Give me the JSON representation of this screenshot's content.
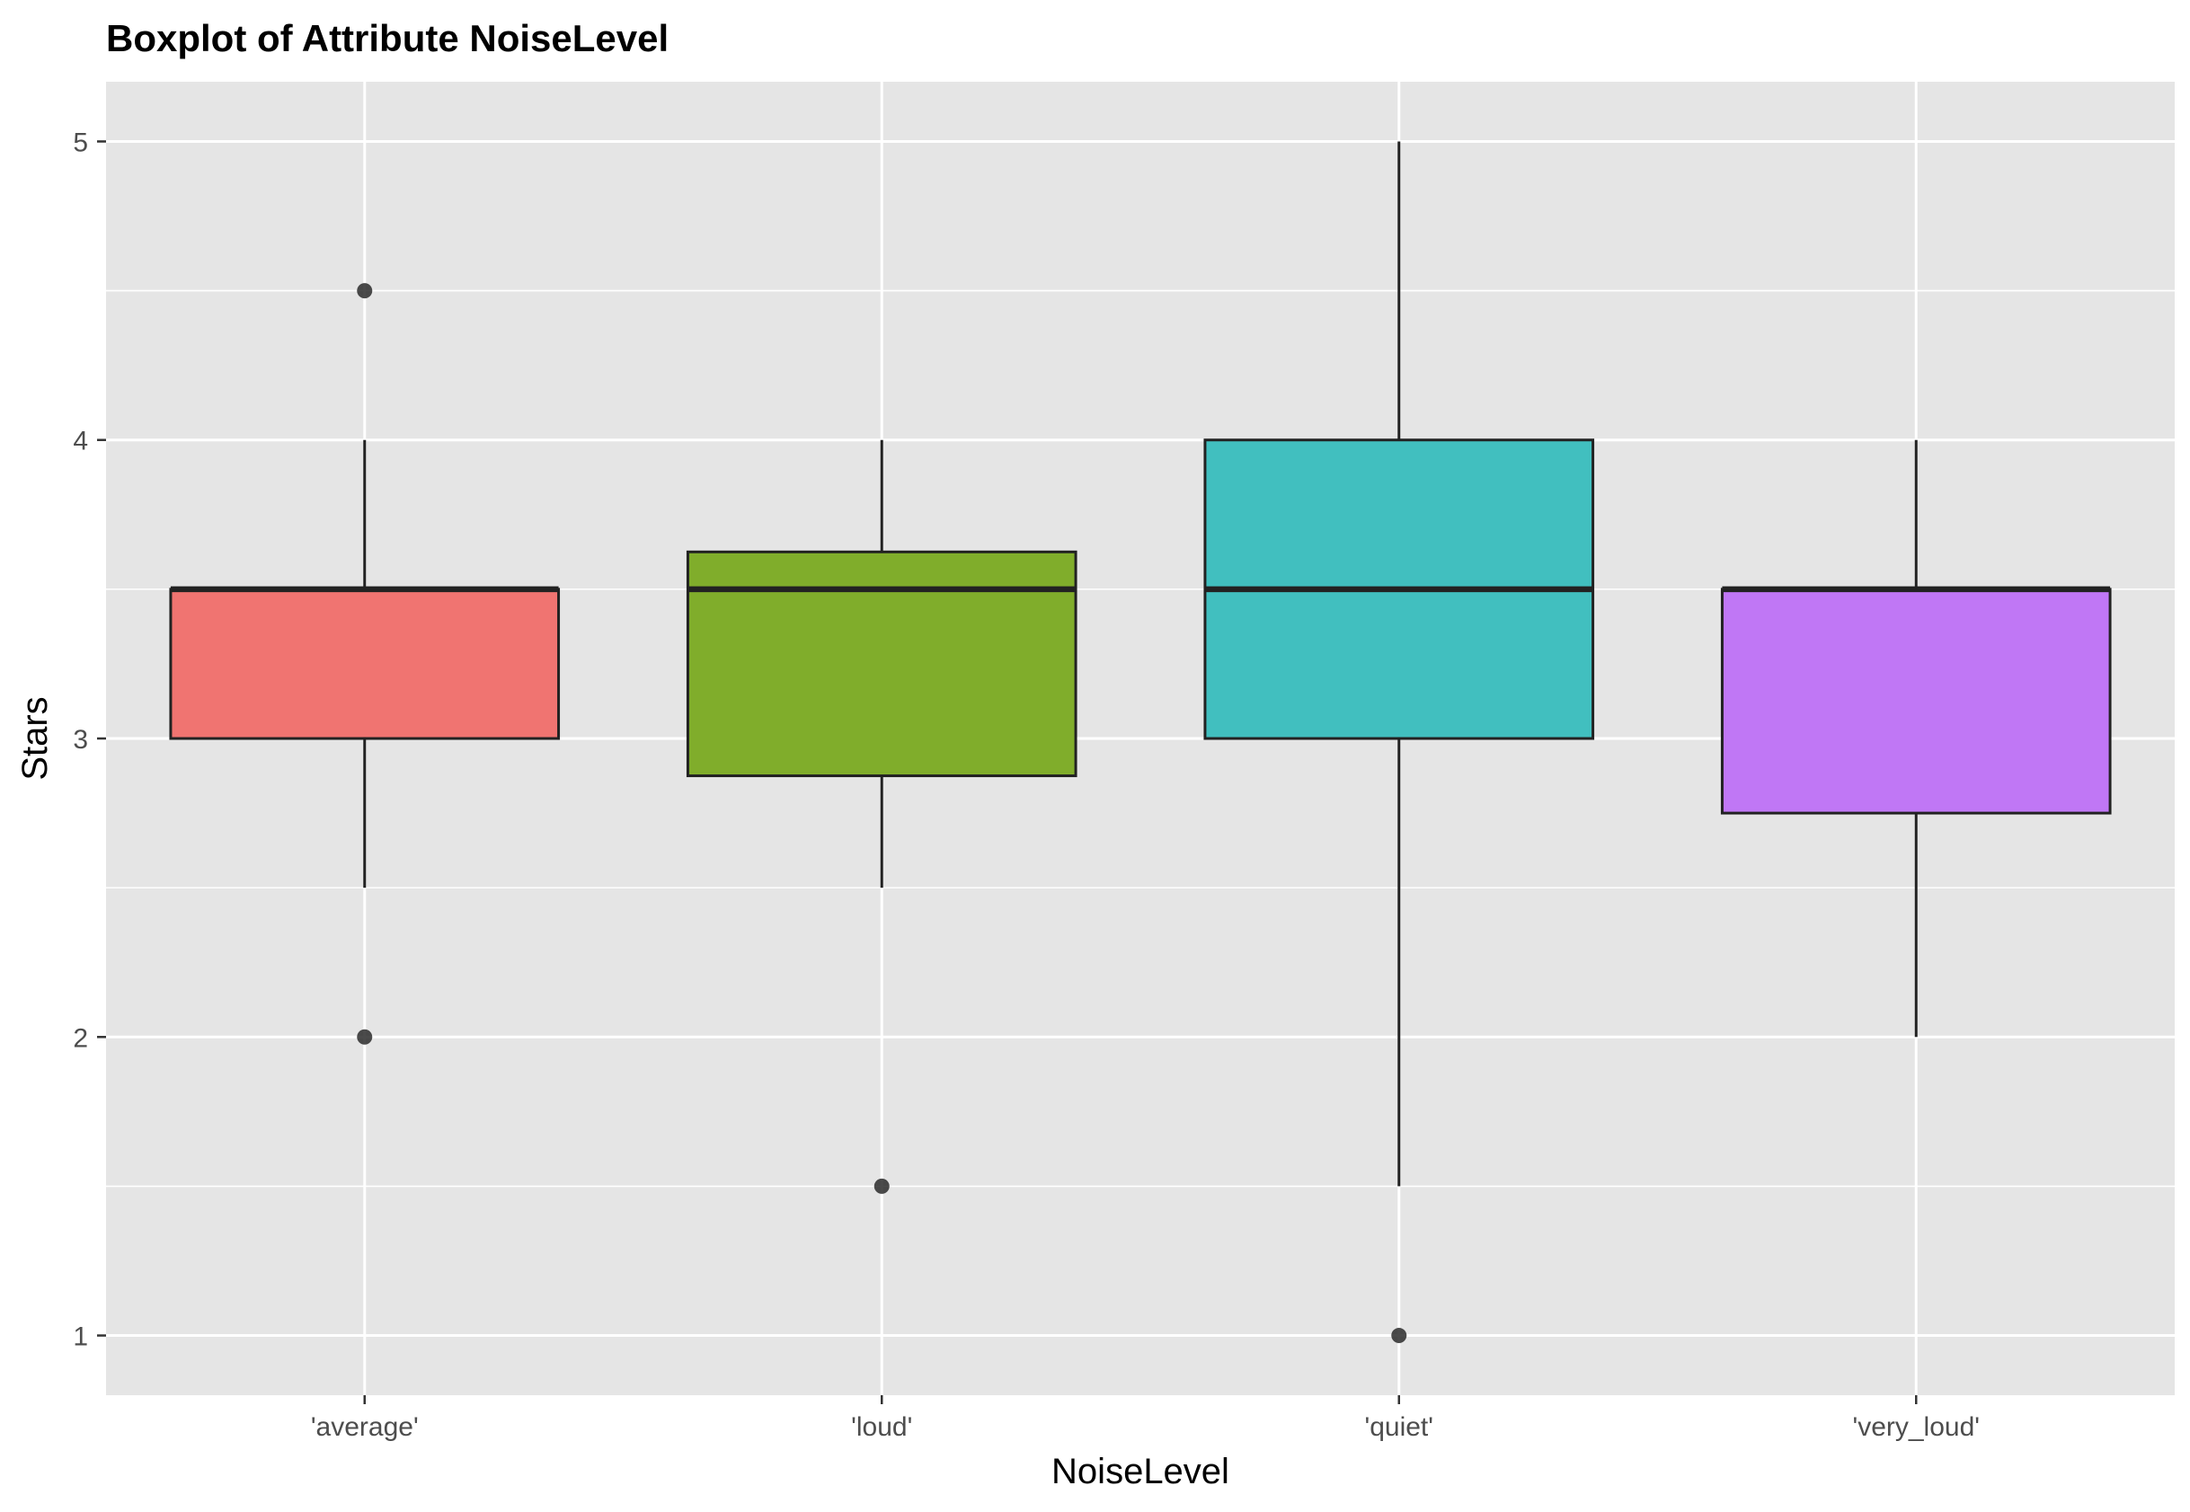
{
  "chart_data": {
    "type": "boxplot",
    "title": "Boxplot of Attribute NoiseLevel",
    "xlabel": "NoiseLevel",
    "ylabel": "Stars",
    "categories": [
      "'average'",
      "'loud'",
      "'quiet'",
      "'very_loud'"
    ],
    "ylim": [
      0.8,
      5.2
    ],
    "yticks": [
      1,
      2,
      3,
      4,
      5
    ],
    "yticks_labels": [
      "1",
      "2",
      "3",
      "4",
      "5"
    ],
    "grid": true,
    "background": "#e5e5e5",
    "boxes": [
      {
        "category": "'average'",
        "whisker_low": 2.5,
        "q1": 3.0,
        "median": 3.5,
        "q3": 3.5,
        "whisker_high": 4.0,
        "outliers": [
          4.5,
          2.0
        ],
        "color": "#f07471"
      },
      {
        "category": "'loud'",
        "whisker_low": 2.5,
        "q1": 2.875,
        "median": 3.5,
        "q3": 3.625,
        "whisker_high": 4.0,
        "outliers": [
          1.5
        ],
        "color": "#80ad2b"
      },
      {
        "category": "'quiet'",
        "whisker_low": 1.5,
        "q1": 3.0,
        "median": 3.5,
        "q3": 4.0,
        "whisker_high": 5.0,
        "outliers": [
          1.0
        ],
        "color": "#41bfbf"
      },
      {
        "category": "'very_loud'",
        "whisker_low": 2.0,
        "q1": 2.75,
        "median": 3.5,
        "q3": 3.5,
        "whisker_high": 4.0,
        "outliers": [],
        "color": "#c077f5"
      }
    ]
  }
}
